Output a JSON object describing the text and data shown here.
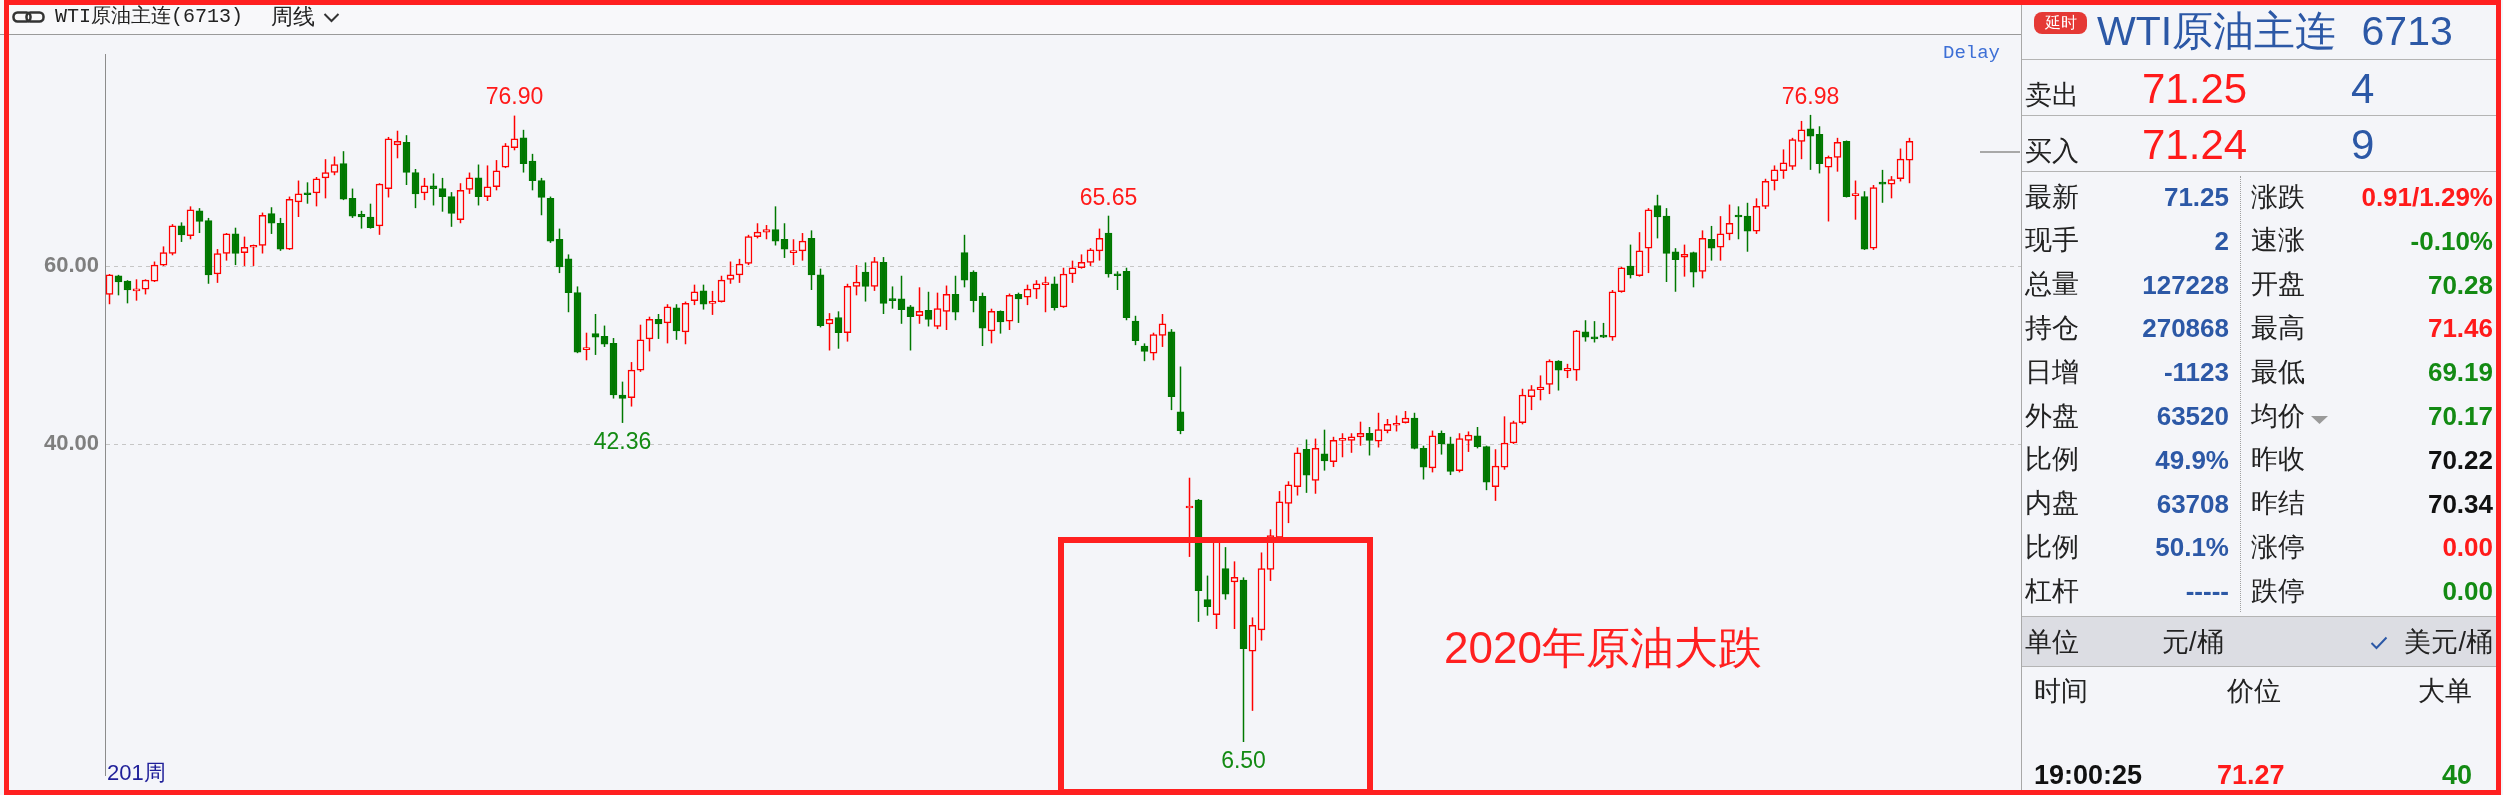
{
  "chart_data": [
    {
      "type": "candlestick",
      "title": "WTI原油主连(6713)",
      "subtitle": "周线",
      "categories": [
        null,
        null,
        null,
        null,
        null,
        null,
        null,
        null,
        null,
        null,
        null,
        null,
        null,
        null,
        null,
        null,
        null,
        null,
        null,
        null,
        null,
        null,
        null,
        null,
        null,
        null,
        null,
        null,
        null,
        null,
        null,
        null,
        null,
        null,
        null,
        null,
        null,
        null,
        null,
        null,
        null,
        null,
        null,
        null,
        null,
        null,
        null,
        null,
        null,
        null,
        null,
        null,
        null,
        null,
        null,
        null,
        null,
        null,
        null,
        null,
        null,
        null,
        null,
        null,
        null,
        null,
        null,
        null,
        null,
        null,
        null,
        null,
        null,
        null,
        null,
        null,
        null,
        null,
        null,
        null,
        null,
        null,
        null,
        null,
        null,
        null,
        null,
        null,
        null,
        null,
        null,
        null,
        null,
        null,
        null,
        null,
        null,
        null,
        null,
        null,
        null,
        null,
        null,
        null,
        null,
        null,
        null,
        null,
        null,
        null,
        null,
        null,
        null,
        null,
        null,
        null,
        null,
        null,
        null,
        null,
        null,
        null,
        null,
        null,
        null,
        null,
        null,
        null,
        null,
        null,
        null,
        null,
        null,
        null,
        null,
        null,
        null,
        null,
        null,
        null,
        null,
        null,
        null,
        null,
        null,
        null,
        null,
        null,
        null,
        null,
        null,
        null,
        null,
        null,
        null,
        null,
        null,
        null,
        null,
        null,
        null,
        null,
        null,
        null,
        null,
        null,
        null,
        null,
        null,
        null,
        null,
        null,
        null,
        null,
        null,
        null,
        null,
        null,
        null,
        null,
        null,
        null,
        null,
        null,
        null,
        null,
        null,
        null,
        null,
        null,
        null,
        null,
        null,
        null,
        null,
        null,
        null,
        null,
        null,
        null,
        null
      ],
      "ohlc": [
        [
          56.8,
          59.1,
          55.7,
          59.0
        ],
        [
          58.9,
          59.0,
          56.7,
          58.2
        ],
        [
          58.3,
          58.4,
          55.8,
          57.3
        ],
        [
          57.2,
          58.5,
          56.1,
          57.3
        ],
        [
          57.4,
          58.5,
          56.8,
          58.4
        ],
        [
          58.3,
          60.5,
          58.2,
          60.1
        ],
        [
          60.1,
          62.2,
          60.0,
          61.5
        ],
        [
          61.4,
          64.7,
          61.2,
          64.5
        ],
        [
          64.5,
          64.9,
          62.7,
          63.5
        ],
        [
          63.4,
          66.7,
          63.0,
          66.3
        ],
        [
          66.2,
          66.5,
          63.7,
          65.0
        ],
        [
          65.1,
          65.4,
          58.0,
          59.0
        ],
        [
          59.1,
          61.9,
          58.1,
          61.4
        ],
        [
          61.4,
          63.7,
          60.6,
          63.6
        ],
        [
          63.6,
          64.3,
          60.1,
          61.4
        ],
        [
          61.5,
          63.3,
          60.0,
          62.1
        ],
        [
          62.1,
          62.4,
          60.0,
          62.2
        ],
        [
          62.3,
          66.0,
          61.4,
          65.7
        ],
        [
          65.9,
          66.6,
          63.6,
          64.8
        ],
        [
          64.8,
          65.4,
          61.7,
          61.9
        ],
        [
          61.9,
          67.8,
          61.8,
          67.5
        ],
        [
          67.2,
          69.6,
          65.5,
          68.1
        ],
        [
          68.2,
          69.4,
          67.0,
          68.0
        ],
        [
          68.2,
          70.0,
          66.7,
          69.8
        ],
        [
          69.9,
          72.0,
          67.6,
          70.5
        ],
        [
          70.5,
          72.3,
          70.2,
          71.4
        ],
        [
          71.5,
          72.9,
          67.4,
          67.5
        ],
        [
          67.6,
          68.7,
          65.4,
          65.6
        ],
        [
          65.8,
          66.2,
          64.2,
          65.5
        ],
        [
          65.5,
          67.0,
          64.2,
          64.3
        ],
        [
          64.5,
          69.3,
          63.5,
          69.2
        ],
        [
          68.7,
          74.5,
          67.7,
          74.3
        ],
        [
          73.6,
          75.2,
          72.1,
          74.0
        ],
        [
          73.9,
          74.7,
          69.1,
          70.5
        ],
        [
          70.5,
          70.9,
          66.5,
          68.1
        ],
        [
          68.2,
          69.9,
          67.4,
          69.0
        ],
        [
          69.0,
          70.4,
          66.8,
          68.7
        ],
        [
          68.7,
          69.9,
          66.1,
          67.8
        ],
        [
          67.8,
          68.3,
          64.4,
          65.9
        ],
        [
          65.2,
          69.3,
          64.8,
          68.5
        ],
        [
          68.6,
          70.5,
          68.1,
          69.9
        ],
        [
          69.9,
          71.4,
          66.8,
          67.8
        ],
        [
          67.8,
          71.3,
          67.3,
          68.9
        ],
        [
          68.9,
          71.9,
          68.5,
          70.7
        ],
        [
          71.1,
          73.8,
          71.0,
          73.5
        ],
        [
          73.3,
          76.9,
          73.0,
          74.3
        ],
        [
          74.4,
          75.3,
          70.5,
          71.5
        ],
        [
          71.8,
          72.6,
          68.5,
          69.6
        ],
        [
          69.6,
          69.9,
          65.7,
          67.7
        ],
        [
          67.6,
          67.8,
          62.6,
          62.8
        ],
        [
          63.0,
          64.2,
          59.2,
          59.9
        ],
        [
          60.8,
          61.3,
          54.8,
          57.0
        ],
        [
          57.0,
          57.7,
          50.2,
          50.3
        ],
        [
          50.6,
          52.5,
          49.4,
          50.7
        ],
        [
          52.4,
          54.6,
          50.0,
          52.0
        ],
        [
          52.1,
          53.3,
          50.9,
          51.2
        ],
        [
          51.3,
          51.9,
          45.1,
          45.5
        ],
        [
          45.5,
          47.0,
          42.36,
          45.1
        ],
        [
          45.2,
          49.2,
          44.2,
          48.3
        ],
        [
          48.3,
          53.4,
          48.1,
          51.7
        ],
        [
          51.8,
          54.3,
          50.4,
          54.0
        ],
        [
          54.0,
          54.6,
          51.8,
          53.5
        ],
        [
          53.6,
          55.7,
          51.3,
          55.4
        ],
        [
          55.3,
          55.7,
          51.7,
          52.7
        ],
        [
          52.6,
          56.0,
          51.2,
          55.8
        ],
        [
          56.1,
          57.9,
          55.6,
          57.1
        ],
        [
          57.2,
          57.9,
          55.1,
          55.7
        ],
        [
          55.8,
          57.2,
          54.5,
          56.0
        ],
        [
          56.0,
          58.9,
          55.9,
          58.4
        ],
        [
          58.5,
          60.5,
          58.0,
          59.0
        ],
        [
          59.0,
          60.8,
          58.1,
          60.2
        ],
        [
          60.3,
          63.5,
          60.1,
          63.3
        ],
        [
          63.3,
          64.8,
          63.1,
          63.8
        ],
        [
          63.8,
          64.6,
          63.0,
          64.1
        ],
        [
          64.1,
          66.7,
          62.3,
          62.8
        ],
        [
          63.0,
          64.8,
          60.9,
          61.9
        ],
        [
          61.5,
          63.0,
          60.1,
          61.7
        ],
        [
          61.7,
          63.7,
          60.6,
          62.8
        ],
        [
          63.1,
          64.0,
          57.3,
          59.0
        ],
        [
          59.0,
          59.7,
          53.1,
          53.3
        ],
        [
          53.5,
          54.7,
          50.5,
          54.0
        ],
        [
          54.2,
          54.9,
          50.7,
          52.5
        ],
        [
          52.5,
          58.0,
          51.5,
          57.7
        ],
        [
          57.7,
          60.1,
          56.7,
          58.2
        ],
        [
          59.3,
          60.4,
          56.0,
          57.7
        ],
        [
          57.7,
          61.0,
          57.2,
          60.5
        ],
        [
          60.4,
          61.0,
          54.6,
          55.8
        ],
        [
          56.2,
          57.7,
          55.2,
          56.1
        ],
        [
          56.3,
          58.9,
          53.5,
          55.1
        ],
        [
          55.4,
          55.6,
          50.5,
          54.3
        ],
        [
          54.4,
          57.6,
          53.5,
          54.9
        ],
        [
          55.0,
          57.1,
          53.2,
          54.0
        ],
        [
          53.2,
          57.0,
          52.9,
          55.2
        ],
        [
          54.9,
          57.8,
          52.8,
          56.8
        ],
        [
          56.8,
          58.9,
          53.9,
          54.8
        ],
        [
          61.5,
          63.5,
          57.6,
          58.4
        ],
        [
          59.3,
          59.5,
          54.8,
          56.1
        ],
        [
          56.6,
          57.0,
          51.0,
          53.0
        ],
        [
          52.7,
          55.2,
          51.3,
          54.9
        ],
        [
          54.9,
          55.0,
          52.4,
          53.7
        ],
        [
          53.8,
          56.9,
          52.8,
          56.7
        ],
        [
          56.8,
          57.0,
          53.6,
          56.3
        ],
        [
          56.5,
          57.9,
          55.6,
          57.4
        ],
        [
          57.4,
          58.4,
          56.3,
          58.0
        ],
        [
          57.9,
          58.8,
          54.8,
          58.0
        ],
        [
          58.0,
          58.8,
          55.0,
          55.3
        ],
        [
          55.4,
          59.8,
          55.3,
          59.1
        ],
        [
          59.1,
          60.6,
          58.1,
          59.8
        ],
        [
          59.8,
          61.3,
          59.7,
          60.4
        ],
        [
          60.4,
          62.0,
          60.0,
          61.8
        ],
        [
          61.7,
          64.2,
          60.6,
          63.1
        ],
        [
          63.7,
          65.65,
          58.7,
          59.1
        ],
        [
          59.1,
          59.4,
          57.3,
          58.9
        ],
        [
          59.4,
          59.8,
          53.9,
          54.2
        ],
        [
          53.8,
          54.4,
          51.1,
          51.6
        ],
        [
          51.0,
          51.3,
          49.3,
          50.4
        ],
        [
          50.2,
          52.5,
          49.4,
          52.3
        ],
        [
          52.2,
          54.6,
          50.9,
          53.5
        ],
        [
          52.6,
          52.9,
          43.8,
          45.3
        ],
        [
          43.6,
          48.7,
          41.1,
          41.5
        ],
        [
          32.8,
          36.2,
          27.3,
          32.9
        ],
        [
          33.7,
          33.8,
          20.0,
          23.5
        ],
        [
          22.5,
          25.2,
          20.7,
          21.7
        ],
        [
          20.8,
          29.1,
          19.2,
          29.0
        ],
        [
          26.0,
          28.4,
          22.5,
          23.1
        ],
        [
          24.5,
          26.8,
          19.2,
          25.0
        ],
        [
          24.7,
          25.0,
          6.5,
          17.0
        ],
        [
          16.7,
          20.5,
          10.0,
          19.6
        ],
        [
          19.1,
          27.8,
          17.9,
          26.0
        ],
        [
          25.9,
          30.4,
          24.6,
          29.7
        ],
        [
          29.5,
          34.7,
          29.3,
          33.5
        ],
        [
          33.3,
          35.8,
          31.1,
          35.4
        ],
        [
          35.2,
          39.6,
          34.2,
          39.0
        ],
        [
          39.4,
          40.5,
          34.5,
          36.5
        ],
        [
          35.9,
          40.6,
          34.4,
          39.5
        ],
        [
          38.9,
          41.6,
          37.0,
          38.1
        ],
        [
          38.0,
          40.8,
          37.4,
          40.4
        ],
        [
          40.4,
          41.2,
          38.5,
          40.6
        ],
        [
          40.4,
          41.2,
          39.0,
          40.8
        ],
        [
          40.8,
          42.5,
          39.8,
          41.2
        ],
        [
          41.2,
          41.9,
          38.7,
          40.4
        ],
        [
          40.3,
          43.5,
          39.6,
          41.6
        ],
        [
          41.5,
          42.8,
          41.2,
          42.2
        ],
        [
          42.1,
          43.2,
          41.4,
          42.2
        ],
        [
          42.4,
          43.7,
          42.3,
          42.9
        ],
        [
          42.9,
          43.5,
          39.4,
          39.5
        ],
        [
          39.5,
          39.8,
          36.0,
          37.4
        ],
        [
          37.3,
          41.5,
          36.8,
          40.9
        ],
        [
          41.2,
          41.5,
          38.8,
          40.0
        ],
        [
          40.0,
          40.8,
          36.5,
          36.9
        ],
        [
          37.0,
          41.2,
          36.8,
          40.6
        ],
        [
          40.4,
          41.4,
          39.1,
          41.0
        ],
        [
          40.9,
          41.9,
          39.5,
          39.7
        ],
        [
          39.7,
          39.8,
          34.8,
          35.7
        ],
        [
          35.2,
          39.4,
          33.6,
          37.5
        ],
        [
          37.4,
          43.1,
          37.1,
          40.1
        ],
        [
          40.1,
          42.6,
          40.0,
          42.4
        ],
        [
          42.4,
          46.2,
          42.2,
          45.5
        ],
        [
          45.3,
          46.6,
          43.8,
          46.1
        ],
        [
          46.1,
          47.7,
          44.9,
          46.4
        ],
        [
          46.7,
          49.5,
          45.6,
          49.3
        ],
        [
          49.3,
          49.4,
          46.0,
          48.3
        ],
        [
          48.2,
          49.0,
          47.4,
          48.5
        ],
        [
          48.3,
          52.8,
          47.1,
          52.7
        ],
        [
          52.6,
          53.9,
          51.5,
          52.0
        ],
        [
          52.0,
          53.8,
          51.4,
          51.8
        ],
        [
          52.2,
          53.6,
          51.9,
          52.0
        ],
        [
          52.0,
          57.3,
          51.6,
          57.1
        ],
        [
          57.1,
          59.9,
          57.0,
          59.8
        ],
        [
          60.0,
          62.4,
          58.6,
          59.0
        ],
        [
          58.9,
          63.8,
          58.8,
          61.7
        ],
        [
          62.0,
          66.5,
          59.2,
          66.3
        ],
        [
          66.8,
          68.0,
          63.1,
          65.5
        ],
        [
          65.6,
          66.5,
          58.2,
          61.4
        ],
        [
          61.6,
          62.0,
          57.1,
          60.7
        ],
        [
          61.0,
          62.4,
          58.8,
          61.3
        ],
        [
          61.5,
          61.6,
          57.6,
          59.3
        ],
        [
          59.4,
          64.0,
          58.6,
          63.1
        ],
        [
          63.0,
          64.5,
          60.6,
          62.0
        ],
        [
          62.1,
          65.6,
          60.6,
          63.6
        ],
        [
          63.6,
          66.9,
          62.9,
          64.8
        ],
        [
          65.6,
          66.7,
          63.0,
          65.5
        ],
        [
          65.6,
          67.1,
          61.6,
          63.9
        ],
        [
          63.9,
          67.6,
          63.6,
          66.7
        ],
        [
          66.7,
          69.8,
          66.4,
          69.5
        ],
        [
          69.6,
          71.3,
          68.5,
          70.8
        ],
        [
          70.7,
          73.1,
          69.8,
          71.6
        ],
        [
          71.2,
          74.4,
          70.8,
          74.2
        ],
        [
          74.0,
          76.3,
          72.0,
          75.3
        ],
        [
          75.4,
          76.98,
          70.8,
          74.6
        ],
        [
          74.8,
          75.7,
          70.4,
          71.5
        ],
        [
          71.1,
          72.4,
          65.0,
          72.2
        ],
        [
          72.2,
          74.4,
          70.6,
          73.9
        ],
        [
          74.0,
          74.1,
          67.7,
          67.8
        ],
        [
          67.9,
          69.6,
          65.2,
          68.1
        ],
        [
          67.8,
          68.4,
          61.8,
          61.9
        ],
        [
          62.0,
          69.1,
          61.8,
          68.8
        ],
        [
          69.3,
          70.8,
          67.1,
          69.2
        ],
        [
          69.2,
          70.1,
          67.6,
          69.7
        ],
        [
          69.8,
          73.2,
          69.5,
          72.0
        ],
        [
          71.9,
          74.4,
          69.3,
          74.0
        ]
      ],
      "colors": [
        "#ff0000",
        "#007800",
        "#007800",
        "#ff0000",
        "#ff0000",
        "#ff0000",
        "#ff0000",
        "#ff0000",
        "#007800",
        "#ff0000",
        "#007800",
        "#007800",
        "#ff0000",
        "#ff0000",
        "#007800",
        "#ff0000",
        "#ff0000",
        "#ff0000",
        "#007800",
        "#007800",
        "#ff0000",
        "#ff0000",
        "#007800",
        "#ff0000",
        "#ff0000",
        "#ff0000",
        "#007800",
        "#007800",
        "#007800",
        "#007800",
        "#ff0000",
        "#ff0000",
        "#ff0000",
        "#007800",
        "#007800",
        "#ff0000",
        "#007800",
        "#007800",
        "#007800",
        "#ff0000",
        "#ff0000",
        "#007800",
        "#ff0000",
        "#ff0000",
        "#ff0000",
        "#ff0000",
        "#007800",
        "#007800",
        "#007800",
        "#007800",
        "#007800",
        "#007800",
        "#007800",
        "#ff0000",
        "#007800",
        "#007800",
        "#007800",
        "#007800",
        "#ff0000",
        "#ff0000",
        "#ff0000",
        "#007800",
        "#ff0000",
        "#007800",
        "#ff0000",
        "#ff0000",
        "#007800",
        "#ff0000",
        "#ff0000",
        "#ff0000",
        "#ff0000",
        "#ff0000",
        "#ff0000",
        "#ff0000",
        "#007800",
        "#007800",
        "#ff0000",
        "#ff0000",
        "#007800",
        "#007800",
        "#ff0000",
        "#007800",
        "#ff0000",
        "#ff0000",
        "#007800",
        "#ff0000",
        "#007800",
        "#007800",
        "#007800",
        "#007800",
        "#ff0000",
        "#007800",
        "#ff0000",
        "#ff0000",
        "#007800",
        "#007800",
        "#007800",
        "#007800",
        "#ff0000",
        "#007800",
        "#ff0000",
        "#007800",
        "#ff0000",
        "#ff0000",
        "#ff0000",
        "#007800",
        "#ff0000",
        "#ff0000",
        "#ff0000",
        "#ff0000",
        "#ff0000",
        "#007800",
        "#007800",
        "#007800",
        "#007800",
        "#007800",
        "#ff0000",
        "#ff0000",
        "#007800",
        "#007800",
        "#ff0000",
        "#007800",
        "#007800",
        "#ff0000",
        "#007800",
        "#ff0000",
        "#007800",
        "#ff0000",
        "#ff0000",
        "#ff0000",
        "#ff0000",
        "#ff0000",
        "#ff0000",
        "#007800",
        "#ff0000",
        "#007800",
        "#ff0000",
        "#ff0000",
        "#ff0000",
        "#ff0000",
        "#007800",
        "#ff0000",
        "#ff0000",
        "#ff0000",
        "#ff0000",
        "#007800",
        "#007800",
        "#ff0000",
        "#007800",
        "#007800",
        "#ff0000",
        "#ff0000",
        "#007800",
        "#007800",
        "#ff0000",
        "#ff0000",
        "#ff0000",
        "#ff0000",
        "#ff0000",
        "#ff0000",
        "#ff0000",
        "#007800",
        "#ff0000",
        "#ff0000",
        "#007800",
        "#007800",
        "#007800",
        "#ff0000",
        "#ff0000",
        "#007800",
        "#ff0000",
        "#ff0000",
        "#007800",
        "#007800",
        "#007800",
        "#ff0000",
        "#007800",
        "#ff0000",
        "#007800",
        "#ff0000",
        "#ff0000",
        "#007800",
        "#007800",
        "#ff0000",
        "#ff0000",
        "#ff0000",
        "#ff0000",
        "#ff0000",
        "#ff0000",
        "#007800",
        "#007800",
        "#ff0000",
        "#ff0000",
        "#007800",
        "#ff0000",
        "#007800",
        "#ff0000",
        "#007800",
        "#ff0000",
        "#ff0000",
        "#ff0000"
      ],
      "ylim": [
        2.7,
        83.8
      ],
      "yticks": [
        {
          "value": 40,
          "label": "40.00"
        },
        {
          "value": 60,
          "label": "60.00"
        }
      ],
      "grid": "y",
      "tick_labels": "y",
      "annotations": [
        {
          "text": "76.90",
          "y": 76.9
        },
        {
          "text": "42.36",
          "y": 42.36
        },
        {
          "text": "65.65",
          "y": 65.65
        },
        {
          "text": "6.50",
          "y": 6.5
        },
        {
          "text": "76.98",
          "y": 76.98
        },
        "2020年原油大跌",
        "Delay",
        "201周"
      ]
    },
    {
      "type": "other",
      "title": "WTI原油主连 6713",
      "annotations": [
        "延时",
        "卖出",
        "71.25",
        "4",
        "买入",
        "71.24",
        "9",
        "最新",
        "71.25",
        "涨跌",
        "0.91/1.29%",
        "现手",
        "2",
        "速涨",
        "-0.10%",
        "总量",
        "127228",
        "开盘",
        "70.28",
        "持仓",
        "270868",
        "最高",
        "71.46",
        "日增",
        "-1123",
        "最低",
        "69.19",
        "外盘",
        "63520",
        "均价",
        "70.17",
        "比例",
        "49.9%",
        "昨收",
        "70.22",
        "内盘",
        "63708",
        "昨结",
        "70.34",
        "比例",
        "50.1%",
        "涨停",
        "0.00",
        "杠杆",
        "-----",
        "跌停",
        "0.00",
        "单位",
        "元/桶",
        "美元/桶",
        "时间",
        "价位",
        "大单",
        "19:00:25",
        "71.27",
        "40"
      ]
    }
  ]
}
